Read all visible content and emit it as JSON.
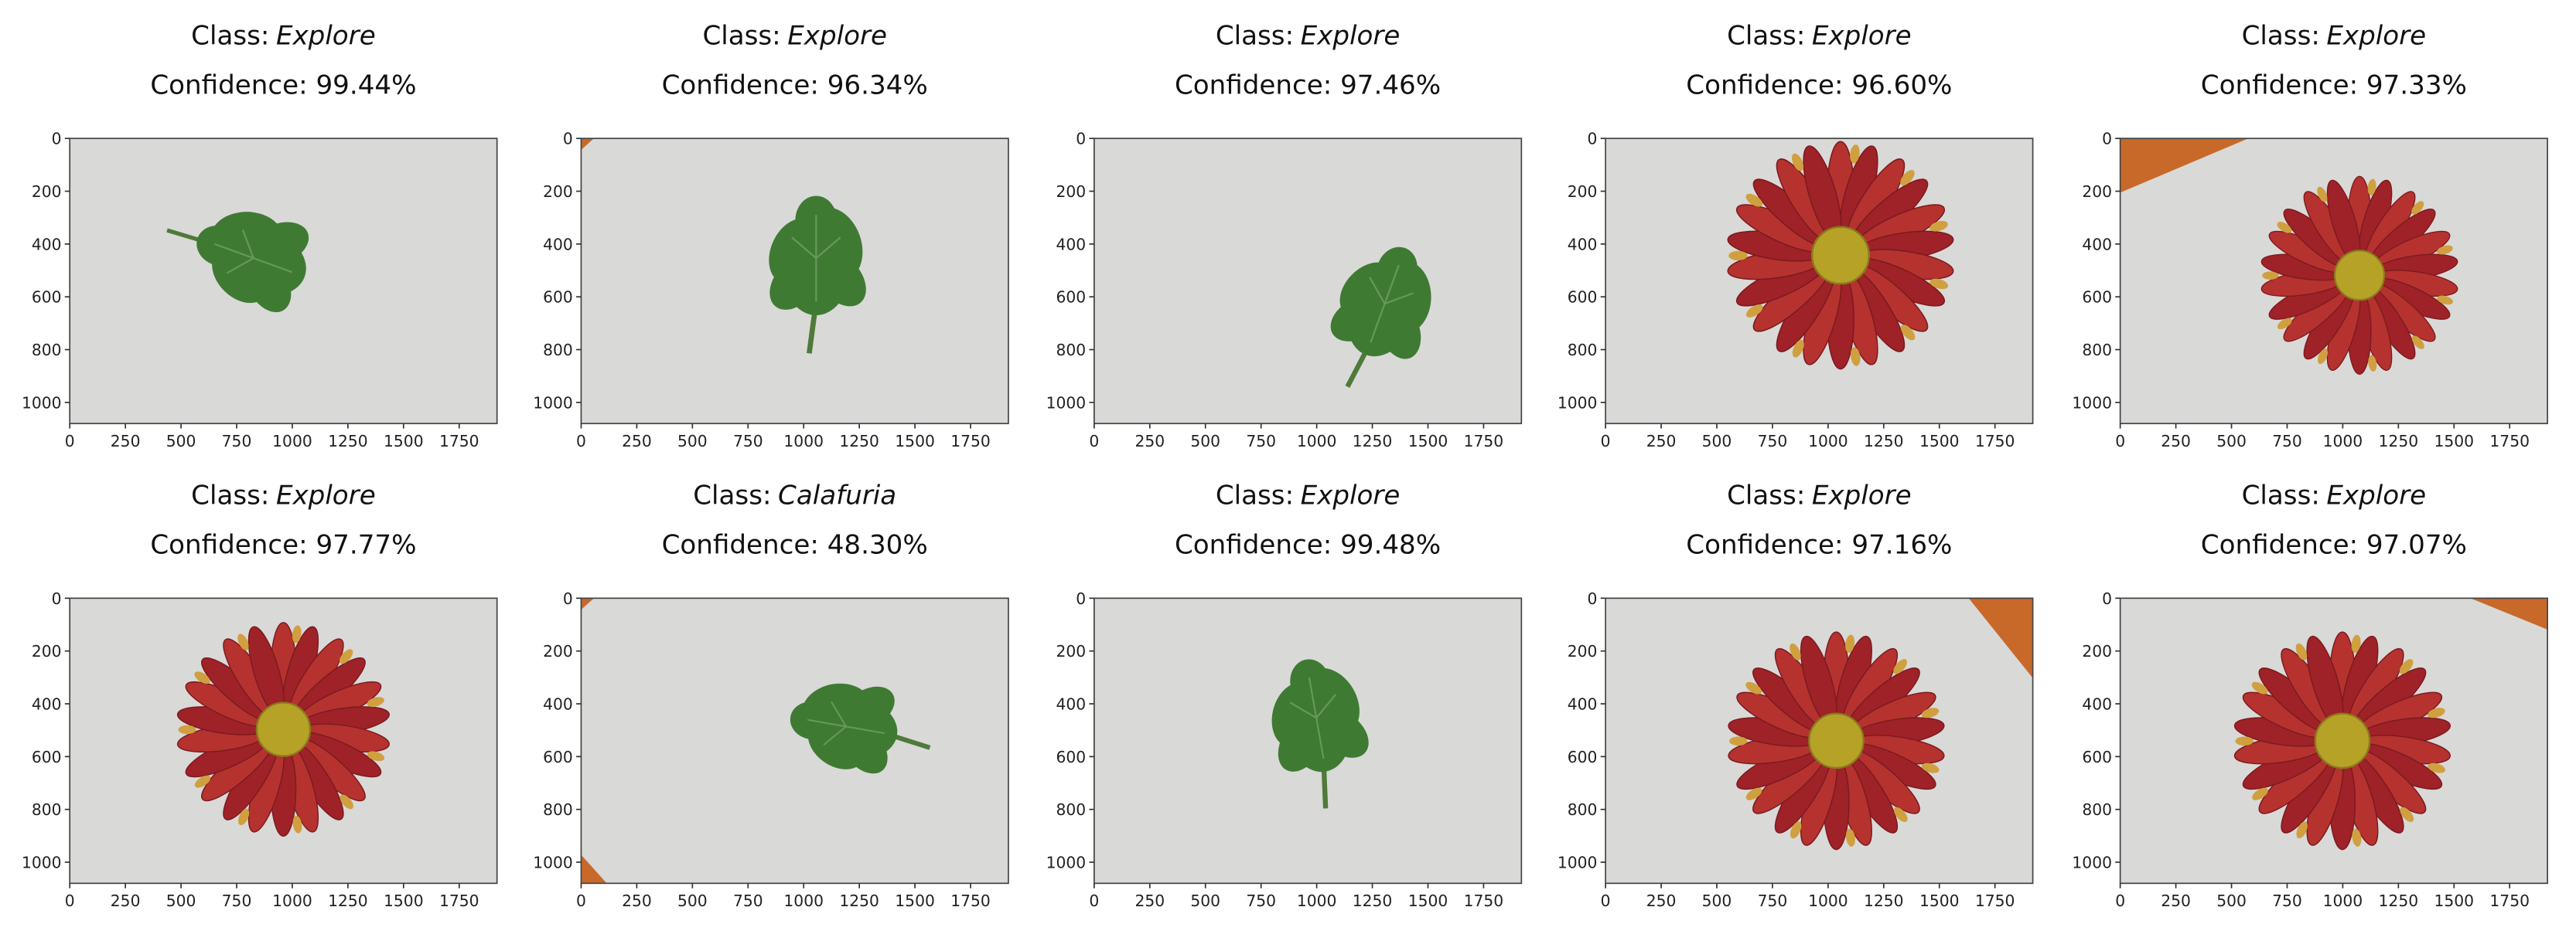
{
  "axes": {
    "xlim": [
      0,
      1920
    ],
    "ylim": [
      0,
      1080
    ],
    "xticks": [
      0,
      250,
      500,
      750,
      1000,
      1250,
      1500,
      1750
    ],
    "yticks": [
      0,
      200,
      400,
      600,
      800,
      1000
    ]
  },
  "panels": [
    {
      "class_label": "Class:",
      "class": "Explore",
      "confidence": "Confidence: 99.44%"
    },
    {
      "class_label": "Class:",
      "class": "Explore",
      "confidence": "Confidence: 96.34%"
    },
    {
      "class_label": "Class:",
      "class": "Explore",
      "confidence": "Confidence: 97.46%"
    },
    {
      "class_label": "Class:",
      "class": "Explore",
      "confidence": "Confidence: 96.60%"
    },
    {
      "class_label": "Class:",
      "class": "Explore",
      "confidence": "Confidence: 97.33%"
    },
    {
      "class_label": "Class:",
      "class": "Explore",
      "confidence": "Confidence: 97.77%"
    },
    {
      "class_label": "Class:",
      "class": "Calafuria",
      "confidence": "Confidence: 48.30%"
    },
    {
      "class_label": "Class:",
      "class": "Explore",
      "confidence": "Confidence: 99.48%"
    },
    {
      "class_label": "Class:",
      "class": "Explore",
      "confidence": "Confidence: 97.16%"
    },
    {
      "class_label": "Class:",
      "class": "Explore",
      "confidence": "Confidence: 97.07%"
    }
  ]
}
